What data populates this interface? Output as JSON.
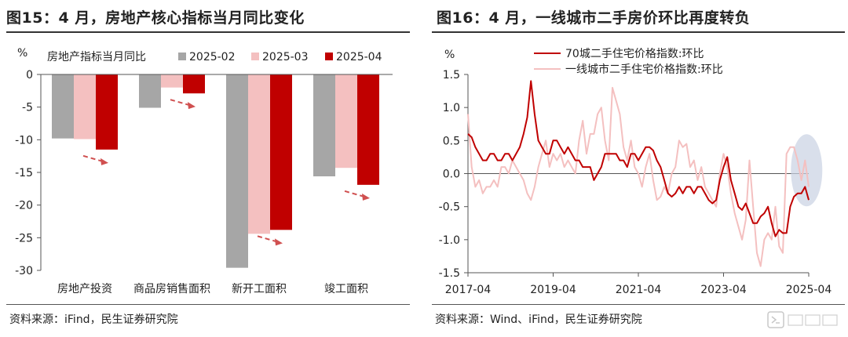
{
  "left": {
    "title": "图15：4 月，房地产核心指标当月同比变化",
    "source": "资料来源：iFind，民生证券研究院",
    "chart_data": {
      "type": "bar",
      "unit": "%",
      "legend_title": "房地产指标当月同比",
      "legend_placement": "top",
      "categories": [
        "房地产投资",
        "商品房销售面积",
        "新开工面积",
        "竣工面积"
      ],
      "series": [
        {
          "name": "2025-02",
          "color": "#a6a6a6",
          "values": [
            -9.8,
            -5.1,
            -29.6,
            -15.6
          ]
        },
        {
          "name": "2025-03",
          "color": "#f4c0c0",
          "values": [
            -9.9,
            -2.0,
            -24.4,
            -14.3
          ]
        },
        {
          "name": "2025-04",
          "color": "#c00000",
          "values": [
            -11.5,
            -2.9,
            -23.8,
            -16.9
          ]
        }
      ],
      "ylim": [
        -30,
        0
      ],
      "yticks": [
        0,
        -5,
        -10,
        -15,
        -20,
        -25,
        -30
      ],
      "grid": false,
      "annotations": "dashed red arrows pointing down-right under each category group"
    }
  },
  "right": {
    "title": "图16：4 月，一线城市二手房价环比再度转负",
    "source": "资料来源：Wind、iFind，民生证券研究院",
    "chart_data": {
      "type": "line",
      "unit": "%",
      "legend_placement": "top-center",
      "x_ticks": [
        "2017-04",
        "2019-04",
        "2021-04",
        "2023-04",
        "2025-04"
      ],
      "x_start": "2017-04",
      "x_end": "2025-04",
      "ylim": [
        -1.5,
        1.5
      ],
      "yticks": [
        1.5,
        1.0,
        0.5,
        0.0,
        -0.5,
        -1.0,
        -1.5
      ],
      "grid": false,
      "highlight": "shaded ellipse around 2025-01 to 2025-04",
      "series": [
        {
          "name": "70城二手住宅价格指数:环比",
          "color": "#c00000",
          "values": [
            0.6,
            0.55,
            0.4,
            0.3,
            0.2,
            0.2,
            0.3,
            0.3,
            0.2,
            0.2,
            0.3,
            0.3,
            0.2,
            0.3,
            0.4,
            0.6,
            0.85,
            1.4,
            0.9,
            0.5,
            0.4,
            0.3,
            0.3,
            0.5,
            0.5,
            0.4,
            0.3,
            0.4,
            0.3,
            0.2,
            0.2,
            0.1,
            0.1,
            0.1,
            -0.1,
            0.0,
            0.1,
            0.3,
            0.3,
            0.3,
            0.3,
            0.2,
            0.2,
            0.1,
            0.3,
            0.3,
            0.2,
            0.3,
            0.4,
            0.4,
            0.35,
            0.2,
            0.1,
            -0.1,
            -0.3,
            -0.35,
            -0.3,
            -0.2,
            -0.3,
            -0.2,
            -0.2,
            -0.3,
            -0.2,
            -0.2,
            -0.3,
            -0.4,
            -0.45,
            -0.4,
            -0.1,
            0.1,
            0.25,
            -0.1,
            -0.3,
            -0.5,
            -0.55,
            -0.45,
            -0.6,
            -0.75,
            -0.75,
            -0.65,
            -0.6,
            -0.5,
            -0.75,
            -0.95,
            -0.85,
            -0.9,
            -0.9,
            -0.5,
            -0.35,
            -0.3,
            -0.3,
            -0.2,
            -0.4
          ]
        },
        {
          "name": "一线城市二手住宅价格指数:环比",
          "color": "#f4c0c0",
          "values": [
            0.9,
            0.1,
            -0.2,
            -0.1,
            -0.3,
            -0.2,
            -0.2,
            -0.1,
            -0.2,
            0.1,
            0.1,
            0.0,
            0.2,
            0.1,
            0.0,
            -0.1,
            -0.3,
            -0.4,
            -0.2,
            0.1,
            0.3,
            0.5,
            0.1,
            0.3,
            0.2,
            0.3,
            0.1,
            0.2,
            0.1,
            0.0,
            0.5,
            0.8,
            0.3,
            0.6,
            0.6,
            0.9,
            1.0,
            0.5,
            0.2,
            1.3,
            1.1,
            0.9,
            0.4,
            0.2,
            0.5,
            0.1,
            0.0,
            -0.2,
            0.1,
            0.3,
            -0.1,
            -0.4,
            -0.35,
            -0.2,
            -0.3,
            0.0,
            0.1,
            0.5,
            0.4,
            0.45,
            0.1,
            0.2,
            -0.1,
            0.1,
            -0.2,
            -0.3,
            -0.4,
            -0.5,
            0.0,
            0.3,
            0.1,
            -0.3,
            -0.6,
            -0.8,
            -1.0,
            -0.7,
            0.2,
            -0.5,
            -1.2,
            -1.4,
            -1.0,
            -0.9,
            -1.0,
            -0.5,
            -1.1,
            -1.2,
            0.3,
            0.4,
            0.4,
            0.2,
            -0.1,
            0.2,
            -0.2
          ]
        }
      ]
    }
  }
}
